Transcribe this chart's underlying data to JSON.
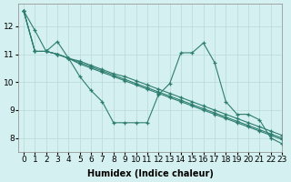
{
  "bg_color": "#d4f0f0",
  "grid_color": "#b8dada",
  "line_color": "#2d7d6e",
  "xlabel": "Humidex (Indice chaleur)",
  "xlabel_fontsize": 7,
  "tick_fontsize": 6.5,
  "xlim": [
    -0.5,
    23
  ],
  "ylim": [
    7.5,
    12.8
  ],
  "yticks": [
    8,
    9,
    10,
    11,
    12
  ],
  "xticks": [
    0,
    1,
    2,
    3,
    4,
    5,
    6,
    7,
    8,
    9,
    10,
    11,
    12,
    13,
    14,
    15,
    16,
    17,
    18,
    19,
    20,
    21,
    22,
    23
  ],
  "series": [
    [
      12.55,
      11.85,
      11.1,
      11.45,
      10.85,
      10.2,
      9.7,
      9.3,
      8.55,
      8.55,
      8.55,
      8.55,
      9.55,
      9.95,
      11.05,
      11.05,
      11.4,
      10.7,
      9.3,
      8.85,
      8.85,
      8.65,
      8.0,
      7.8
    ],
    [
      12.55,
      11.1,
      11.1,
      11.0,
      10.85,
      10.75,
      10.6,
      10.45,
      10.3,
      10.2,
      10.05,
      9.9,
      9.75,
      9.6,
      9.45,
      9.3,
      9.15,
      9.0,
      8.85,
      8.7,
      8.55,
      8.4,
      8.25,
      8.1
    ],
    [
      12.55,
      11.1,
      11.1,
      11.0,
      10.85,
      10.7,
      10.55,
      10.4,
      10.25,
      10.1,
      9.95,
      9.8,
      9.65,
      9.5,
      9.35,
      9.2,
      9.05,
      8.9,
      8.75,
      8.6,
      8.45,
      8.3,
      8.15,
      8.0
    ],
    [
      12.55,
      11.1,
      11.1,
      11.0,
      10.85,
      10.65,
      10.5,
      10.35,
      10.2,
      10.05,
      9.9,
      9.75,
      9.6,
      9.45,
      9.3,
      9.15,
      9.0,
      8.85,
      8.7,
      8.55,
      8.4,
      8.25,
      8.1,
      7.95
    ]
  ]
}
